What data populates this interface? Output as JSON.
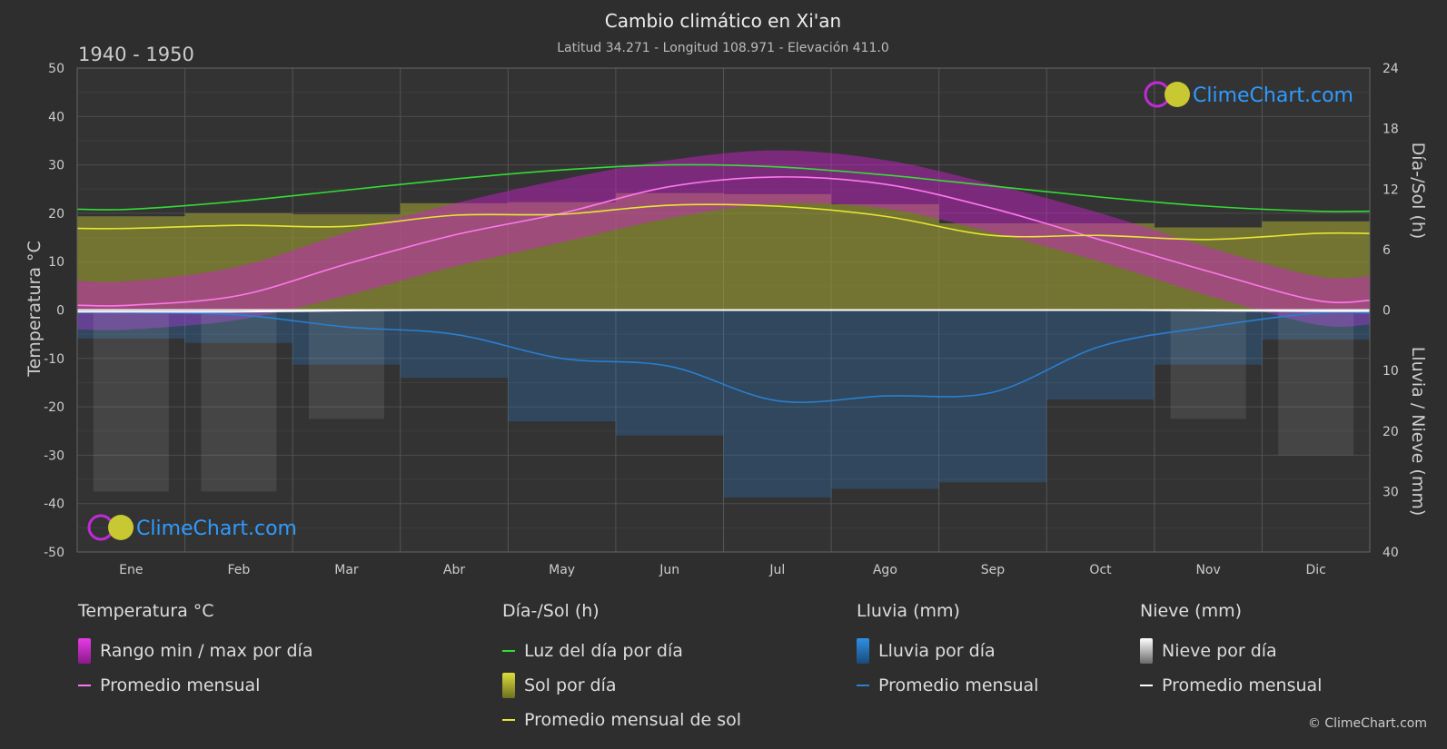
{
  "header": {
    "title": "Cambio climático en Xi'an",
    "subtitle": "Latitud 34.271 - Longitud 108.971 - Elevación 411.0",
    "period": "1940 - 1950"
  },
  "brand": {
    "name": "ClimeChart.com",
    "copyright": "© ClimeChart.com"
  },
  "axes": {
    "left_title": "Temperatura °C",
    "right_top_title": "Día-/Sol (h)",
    "right_bottom_title": "Lluvia / Nieve (mm)",
    "left_ticks": [
      "50",
      "40",
      "30",
      "20",
      "10",
      "0",
      "-10",
      "-20",
      "-30",
      "-40",
      "-50"
    ],
    "right_top_ticks": [
      "24",
      "18",
      "12",
      "6",
      "0"
    ],
    "right_bottom_ticks": [
      "10",
      "20",
      "30",
      "40"
    ]
  },
  "legend": {
    "temp": {
      "title": "Temperatura °C",
      "range": "Rango min / max por día",
      "avg": "Promedio mensual"
    },
    "sun": {
      "title": "Día-/Sol (h)",
      "daylight": "Luz del día por día",
      "sun_day": "Sol por día",
      "sun_avg": "Promedio mensual de sol"
    },
    "rain": {
      "title": "Lluvia (mm)",
      "rain_day": "Lluvia por día",
      "avg": "Promedio mensual"
    },
    "snow": {
      "title": "Nieve (mm)",
      "snow_day": "Nieve por día",
      "avg": "Promedio mensual"
    }
  },
  "colors": {
    "temp_range": "#d21fd2",
    "temp_avg": "#ff77ee",
    "daylight": "#33dd33",
    "sunshine": "#a8a832",
    "sun_avg": "#e6e633",
    "rain": "#2a7fd0",
    "snow": "#cccccc",
    "brand": "#2f9bff"
  },
  "chart_data": {
    "type": "line",
    "categories": [
      "Ene",
      "Feb",
      "Mar",
      "Abr",
      "May",
      "Jun",
      "Jul",
      "Ago",
      "Sep",
      "Oct",
      "Nov",
      "Dic"
    ],
    "temp_ylim": [
      -50,
      50
    ],
    "sun_ylim": [
      0,
      24
    ],
    "precip_ylim": [
      0,
      40
    ],
    "series": [
      {
        "name": "Promedio mensual",
        "axis": "temp",
        "values": [
          1.0,
          3.0,
          9.5,
          15.5,
          20.0,
          25.5,
          27.5,
          26.0,
          21.0,
          14.5,
          8.0,
          2.0
        ]
      },
      {
        "name": "Luz del día por día",
        "axis": "sun",
        "values": [
          10.0,
          10.8,
          11.9,
          13.0,
          13.9,
          14.4,
          14.2,
          13.4,
          12.3,
          11.2,
          10.3,
          9.8
        ]
      },
      {
        "name": "Promedio mensual de sol",
        "axis": "sun",
        "values": [
          8.1,
          8.4,
          8.3,
          9.4,
          9.5,
          10.4,
          10.3,
          9.3,
          7.4,
          7.4,
          7.0,
          7.6
        ]
      },
      {
        "name": "Promedio mensual (lluvia)",
        "axis": "precip",
        "values": [
          0.4,
          0.8,
          2.8,
          4.0,
          8.0,
          9.3,
          15.0,
          14.2,
          13.6,
          6.0,
          2.8,
          0.5
        ]
      },
      {
        "name": "Promedio mensual (nieve)",
        "axis": "precip",
        "values": [
          0.3,
          0.3,
          0.1,
          0.0,
          0.0,
          0.0,
          0.0,
          0.0,
          0.0,
          0.0,
          0.1,
          0.2
        ]
      }
    ],
    "temp_range_band": {
      "min": [
        -4,
        -2,
        3,
        9,
        14,
        19,
        22,
        21,
        16,
        10,
        3,
        -3
      ],
      "max": [
        6,
        9,
        16,
        22,
        27,
        31,
        33,
        31,
        26,
        20,
        13,
        7
      ]
    }
  }
}
